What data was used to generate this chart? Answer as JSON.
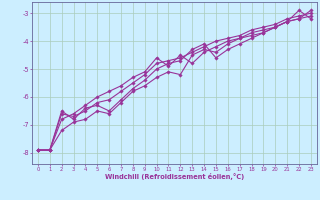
{
  "xlabel": "Windchill (Refroidissement éolien,°C)",
  "bg_color": "#cceeff",
  "line_color": "#993399",
  "grid_color": "#aaccbb",
  "axis_color": "#666699",
  "ylim": [
    -8.4,
    -2.6
  ],
  "xlim": [
    -0.5,
    23.5
  ],
  "yticks": [
    -8,
    -7,
    -6,
    -5,
    -4,
    -3
  ],
  "xticks": [
    0,
    1,
    2,
    3,
    4,
    5,
    6,
    7,
    8,
    9,
    10,
    11,
    12,
    13,
    14,
    15,
    16,
    17,
    18,
    19,
    20,
    21,
    22,
    23
  ],
  "lines": [
    {
      "x": [
        0,
        1,
        2,
        3,
        4,
        5,
        6,
        7,
        8,
        9,
        10,
        11,
        12,
        13,
        14,
        15,
        16,
        17,
        18,
        19,
        20,
        21,
        22,
        23
      ],
      "y": [
        -7.9,
        -7.9,
        -6.6,
        -6.7,
        -6.5,
        -6.2,
        -6.1,
        -5.8,
        -5.5,
        -5.2,
        -4.8,
        -4.7,
        -4.6,
        -4.4,
        -4.2,
        -4.0,
        -3.9,
        -3.8,
        -3.6,
        -3.5,
        -3.4,
        -3.2,
        -3.1,
        -3.0
      ]
    },
    {
      "x": [
        0,
        1,
        2,
        3,
        4,
        5,
        6,
        7,
        8,
        9,
        10,
        11,
        12,
        13,
        14,
        15,
        16,
        17,
        18,
        19,
        20,
        21,
        22,
        23
      ],
      "y": [
        -7.9,
        -7.9,
        -7.2,
        -6.9,
        -6.8,
        -6.5,
        -6.6,
        -6.2,
        -5.8,
        -5.6,
        -5.3,
        -5.1,
        -5.2,
        -4.5,
        -4.3,
        -4.4,
        -4.1,
        -3.9,
        -3.8,
        -3.7,
        -3.5,
        -3.3,
        -3.2,
        -3.1
      ]
    },
    {
      "x": [
        0,
        1,
        2,
        3,
        4,
        5,
        6,
        7,
        8,
        9,
        10,
        11,
        12,
        13,
        14,
        15,
        16,
        17,
        18,
        19,
        20,
        21,
        22,
        23
      ],
      "y": [
        -7.9,
        -7.9,
        -6.5,
        -6.8,
        -6.4,
        -6.3,
        -6.5,
        -6.1,
        -5.7,
        -5.4,
        -5.0,
        -4.8,
        -4.7,
        -4.3,
        -4.1,
        -4.6,
        -4.3,
        -4.1,
        -3.9,
        -3.7,
        -3.5,
        -3.3,
        -2.9,
        -3.2
      ]
    },
    {
      "x": [
        0,
        1,
        2,
        3,
        4,
        5,
        6,
        7,
        8,
        9,
        10,
        11,
        12,
        13,
        14,
        15,
        16,
        17,
        18,
        19,
        20,
        21,
        22,
        23
      ],
      "y": [
        -7.9,
        -7.9,
        -6.8,
        -6.6,
        -6.3,
        -6.0,
        -5.8,
        -5.6,
        -5.3,
        -5.1,
        -4.6,
        -4.9,
        -4.5,
        -4.8,
        -4.4,
        -4.2,
        -4.0,
        -3.9,
        -3.7,
        -3.6,
        -3.5,
        -3.3,
        -3.2,
        -2.9
      ]
    }
  ]
}
